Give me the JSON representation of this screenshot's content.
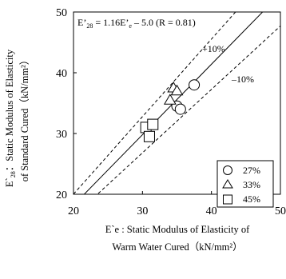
{
  "chart_data": {
    "type": "scatter",
    "equation_prefix": "E’",
    "equation_sub": "28",
    "equation_rest": " = 1.16E’",
    "equation_sub2": "e",
    "equation_tail": " – 5.0 (R = 0.81)",
    "band_upper_label": "+10%",
    "band_lower_label": "–10%",
    "xlabel_line1": "E`e : Static Modulus of Elasticity of",
    "xlabel_line2": "Warm Water Cured（kN/mm²）",
    "ylabel_line1_prefix": "E`",
    "ylabel_line1_sub": "28",
    "ylabel_line1_rest": "：Static Modulus of Elasticity",
    "ylabel_line2": "of Standard Cured（kN/mm²）",
    "xlim": [
      20,
      50
    ],
    "ylim": [
      20,
      50
    ],
    "xticks": [
      "20",
      "30",
      "40",
      "50"
    ],
    "yticks": [
      "20",
      "30",
      "40",
      "50"
    ],
    "regression": {
      "slope": 1.16,
      "intercept": -5.0
    },
    "band_percent": 10,
    "series": [
      {
        "name": "27%",
        "marker": "circle",
        "points": [
          [
            37.5,
            38.0
          ],
          [
            35.0,
            34.5
          ],
          [
            35.5,
            34.0
          ]
        ]
      },
      {
        "name": "33%",
        "marker": "triangle",
        "points": [
          [
            34.5,
            37.5
          ],
          [
            35.0,
            37.0
          ],
          [
            34.0,
            35.5
          ]
        ]
      },
      {
        "name": "45%",
        "marker": "square",
        "points": [
          [
            30.5,
            31.0
          ],
          [
            31.5,
            31.5
          ],
          [
            31.0,
            29.5
          ]
        ]
      }
    ],
    "legend_position": "bottom-right",
    "grid": false
  }
}
